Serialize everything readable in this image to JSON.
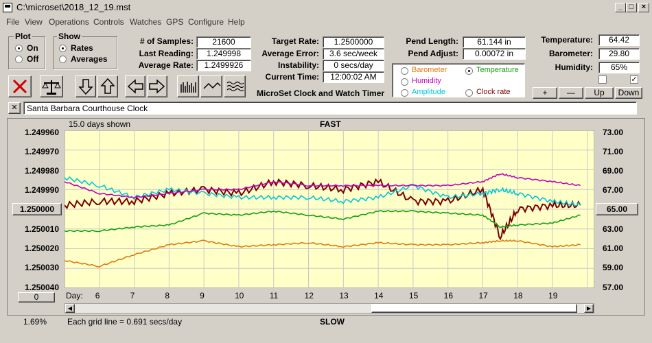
{
  "window": {
    "title": "C:\\microset\\2018_12_19.mst"
  },
  "menu": [
    "File",
    "View",
    "Operations",
    "Controls",
    "Watches",
    "GPS",
    "Configure",
    "Help"
  ],
  "plot_group": {
    "title": "Plot",
    "options": [
      {
        "label": "On",
        "selected": true
      },
      {
        "label": "Off",
        "selected": false
      }
    ]
  },
  "show_group": {
    "title": "Show",
    "options": [
      {
        "label": "Rates",
        "selected": true
      },
      {
        "label": "Averages",
        "selected": false
      }
    ]
  },
  "readings": {
    "samples": {
      "label": "# of Samples:",
      "value": "21600"
    },
    "last_reading": {
      "label": "Last Reading:",
      "value": "1.249998"
    },
    "average_rate": {
      "label": "Average Rate:",
      "value": "1.2499926"
    },
    "target_rate": {
      "label": "Target Rate:",
      "value": "1.2500000"
    },
    "average_error": {
      "label": "Average Error:",
      "value": "3.6 sec/week"
    },
    "instability": {
      "label": "Instability:",
      "value": "0 secs/day"
    },
    "current_time": {
      "label": "Current Time:",
      "value": "12:00:02 AM"
    },
    "pend_length": {
      "label": "Pend Length:",
      "value": "61.144 in"
    },
    "pend_adjust": {
      "label": "Pend Adjust:",
      "value": "0.00072 in"
    },
    "temperature": {
      "label": "Temperature:",
      "value": "64.42"
    },
    "barometer": {
      "label": "Barometer:",
      "value": "29.80"
    },
    "humidity": {
      "label": "Humidity:",
      "value": "65%"
    }
  },
  "app_caption": "MicroSet Clock and Watch Timer",
  "sensor_options": [
    {
      "label": "Barometer",
      "color": "#e07a10",
      "selected": false
    },
    {
      "label": "Temperature",
      "color": "#10a010",
      "selected": true
    },
    {
      "label": "Humidity",
      "color": "#c000c0",
      "selected": false
    },
    {
      "label": "Clock rate",
      "color": "#7a0000",
      "selected": false
    },
    {
      "label": "Amplitude",
      "color": "#00c8d8",
      "selected": false
    }
  ],
  "checkboxes": [
    {
      "checked": false
    },
    {
      "checked": true
    }
  ],
  "scale_buttons": [
    "+",
    "—",
    "Up",
    "Down"
  ],
  "clock_name": "Santa Barbara Courthouse Clock",
  "plot": {
    "header_left": "15.0 days shown",
    "header_center": "FAST",
    "footer_center": "SLOW",
    "footer_left": "Each grid line = 0.691 secs/day",
    "percent": "1.69%",
    "left_ticks": [
      "1.249960",
      "1.249970",
      "1.249980",
      "1.249990",
      "1.250000",
      "1.250010",
      "1.250020",
      "1.250030",
      "1.250040"
    ],
    "left_center_button": "1.250000",
    "right_ticks": [
      "73.00",
      "71.00",
      "69.00",
      "67.00",
      "65.00",
      "63.00",
      "61.00",
      "59.00",
      "57.00"
    ],
    "right_center_button": "65.00",
    "day_label": "Day:",
    "days": [
      "6",
      "7",
      "8",
      "9",
      "10",
      "11",
      "12",
      "13",
      "14",
      "15",
      "16",
      "17",
      "18",
      "19"
    ],
    "offset_button": "0",
    "bg_color": "#ffffc8"
  },
  "chart_data": {
    "type": "line",
    "xlabel": "Day:",
    "x": [
      5,
      6,
      7,
      8,
      9,
      10,
      11,
      12,
      13,
      14,
      15,
      16,
      17,
      17.5,
      18,
      19,
      19.8
    ],
    "ylim_left": [
      1.24996,
      1.25004
    ],
    "ylim_right": [
      57,
      73
    ],
    "series": [
      {
        "name": "Clock rate",
        "color": "#7a0000",
        "axis": "left",
        "values": [
          1.249998,
          1.249996,
          1.249996,
          1.249992,
          1.24999,
          1.249992,
          1.249986,
          1.249988,
          1.24999,
          1.249986,
          1.249996,
          1.249996,
          1.24999,
          1.250014,
          1.25,
          1.249998,
          1.249998
        ]
      },
      {
        "name": "Amplitude",
        "color": "#00c8d8",
        "axis": "left",
        "values": [
          1.249984,
          1.249988,
          1.249994,
          1.24999,
          1.249992,
          1.249994,
          1.249994,
          1.249994,
          1.249996,
          1.249994,
          1.249988,
          1.249994,
          1.249992,
          1.24999,
          1.249992,
          1.249996,
          1.249998
        ]
      },
      {
        "name": "Humidity",
        "color": "#c000c0",
        "axis": "left",
        "values": [
          1.249986,
          1.249992,
          1.249994,
          1.249992,
          1.24999,
          1.24999,
          1.249986,
          1.249988,
          1.249988,
          1.249988,
          1.249988,
          1.249988,
          1.249986,
          1.249982,
          1.249984,
          1.249986,
          1.249988
        ]
      },
      {
        "name": "Temperature",
        "color": "#10a010",
        "axis": "right",
        "values": [
          62.8,
          62.8,
          63.2,
          63.4,
          64.6,
          64.4,
          64.8,
          64.4,
          64.0,
          64.8,
          64.8,
          64.6,
          64.4,
          63.2,
          63.4,
          63.6,
          64.4
        ]
      },
      {
        "name": "Barometer",
        "color": "#e07a10",
        "axis": "right",
        "values": [
          59.8,
          59.2,
          60.4,
          61.4,
          61.8,
          61.2,
          61.4,
          61.6,
          61.2,
          61.6,
          61.4,
          61.4,
          61.6,
          61.8,
          61.8,
          61.2,
          61.4
        ]
      }
    ]
  }
}
